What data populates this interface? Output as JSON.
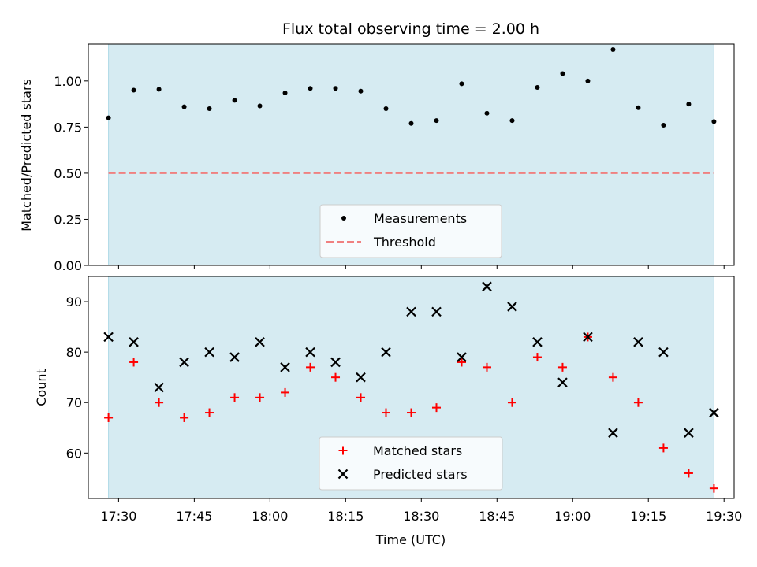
{
  "chart_data": [
    {
      "type": "scatter",
      "title": "Flux total observing time = 2.00 h",
      "xlabel": "",
      "ylabel": "Matched/Predicted stars",
      "xlim": [
        "17:24",
        "19:32"
      ],
      "ylim": [
        0,
        1.2
      ],
      "yticks": [
        "0.00",
        "0.25",
        "0.50",
        "0.75",
        "1.00"
      ],
      "ytick_values": [
        0,
        0.25,
        0.5,
        0.75,
        1.0
      ],
      "xtick_values": [
        "17:30",
        "17:45",
        "18:00",
        "18:15",
        "18:30",
        "18:45",
        "19:00",
        "19:15",
        "19:30"
      ],
      "shaded_span": [
        "17:28",
        "19:28"
      ],
      "shade_color": "#add8e6",
      "legend_position": "lower center",
      "series": [
        {
          "name": "Measurements",
          "marker": "dot",
          "color": "#000000",
          "x": [
            "17:28",
            "17:33",
            "17:38",
            "17:43",
            "17:48",
            "17:53",
            "17:58",
            "18:03",
            "18:08",
            "18:13",
            "18:18",
            "18:23",
            "18:28",
            "18:33",
            "18:38",
            "18:43",
            "18:48",
            "18:53",
            "18:58",
            "19:03",
            "19:08",
            "19:13",
            "19:18",
            "19:23",
            "19:28"
          ],
          "y": [
            0.8,
            0.95,
            0.955,
            0.86,
            0.85,
            0.895,
            0.865,
            0.935,
            0.96,
            0.96,
            0.945,
            0.85,
            0.77,
            0.785,
            0.985,
            0.825,
            0.785,
            0.965,
            1.04,
            1.0,
            1.17,
            0.855,
            0.76,
            0.875,
            0.78
          ]
        },
        {
          "name": "Threshold",
          "style": "dashed",
          "color": "#f08080",
          "y": 0.5
        }
      ]
    },
    {
      "type": "scatter",
      "title": "",
      "xlabel": "Time (UTC)",
      "ylabel": "Count",
      "xlim": [
        "17:24",
        "19:32"
      ],
      "ylim": [
        51,
        95
      ],
      "yticks": [
        "60",
        "70",
        "80",
        "90"
      ],
      "ytick_values": [
        60,
        70,
        80,
        90
      ],
      "xticks": [
        "17:30",
        "17:45",
        "18:00",
        "18:15",
        "18:30",
        "18:45",
        "19:00",
        "19:15",
        "19:30"
      ],
      "shaded_span": [
        "17:28",
        "19:28"
      ],
      "shade_color": "#add8e6",
      "legend_position": "lower center",
      "series": [
        {
          "name": "Matched stars",
          "marker": "plus",
          "color": "#ff0000",
          "x": [
            "17:28",
            "17:33",
            "17:38",
            "17:43",
            "17:48",
            "17:53",
            "17:58",
            "18:03",
            "18:08",
            "18:13",
            "18:18",
            "18:23",
            "18:28",
            "18:33",
            "18:38",
            "18:43",
            "18:48",
            "18:53",
            "18:58",
            "19:03",
            "19:08",
            "19:13",
            "19:18",
            "19:23",
            "19:28"
          ],
          "y": [
            67,
            78,
            70,
            67,
            68,
            71,
            71,
            72,
            77,
            75,
            71,
            68,
            68,
            69,
            78,
            77,
            70,
            79,
            77,
            83,
            75,
            70,
            61,
            56,
            53
          ]
        },
        {
          "name": "Predicted stars",
          "marker": "x",
          "color": "#000000",
          "x": [
            "17:28",
            "17:33",
            "17:38",
            "17:43",
            "17:48",
            "17:53",
            "17:58",
            "18:03",
            "18:08",
            "18:13",
            "18:18",
            "18:23",
            "18:28",
            "18:33",
            "18:38",
            "18:43",
            "18:48",
            "18:53",
            "18:58",
            "19:03",
            "19:08",
            "19:13",
            "19:18",
            "19:23",
            "19:28"
          ],
          "y": [
            83,
            82,
            73,
            78,
            80,
            79,
            82,
            77,
            80,
            78,
            75,
            80,
            88,
            88,
            79,
            93,
            89,
            82,
            74,
            83,
            64,
            82,
            80,
            64,
            68
          ]
        }
      ]
    }
  ]
}
